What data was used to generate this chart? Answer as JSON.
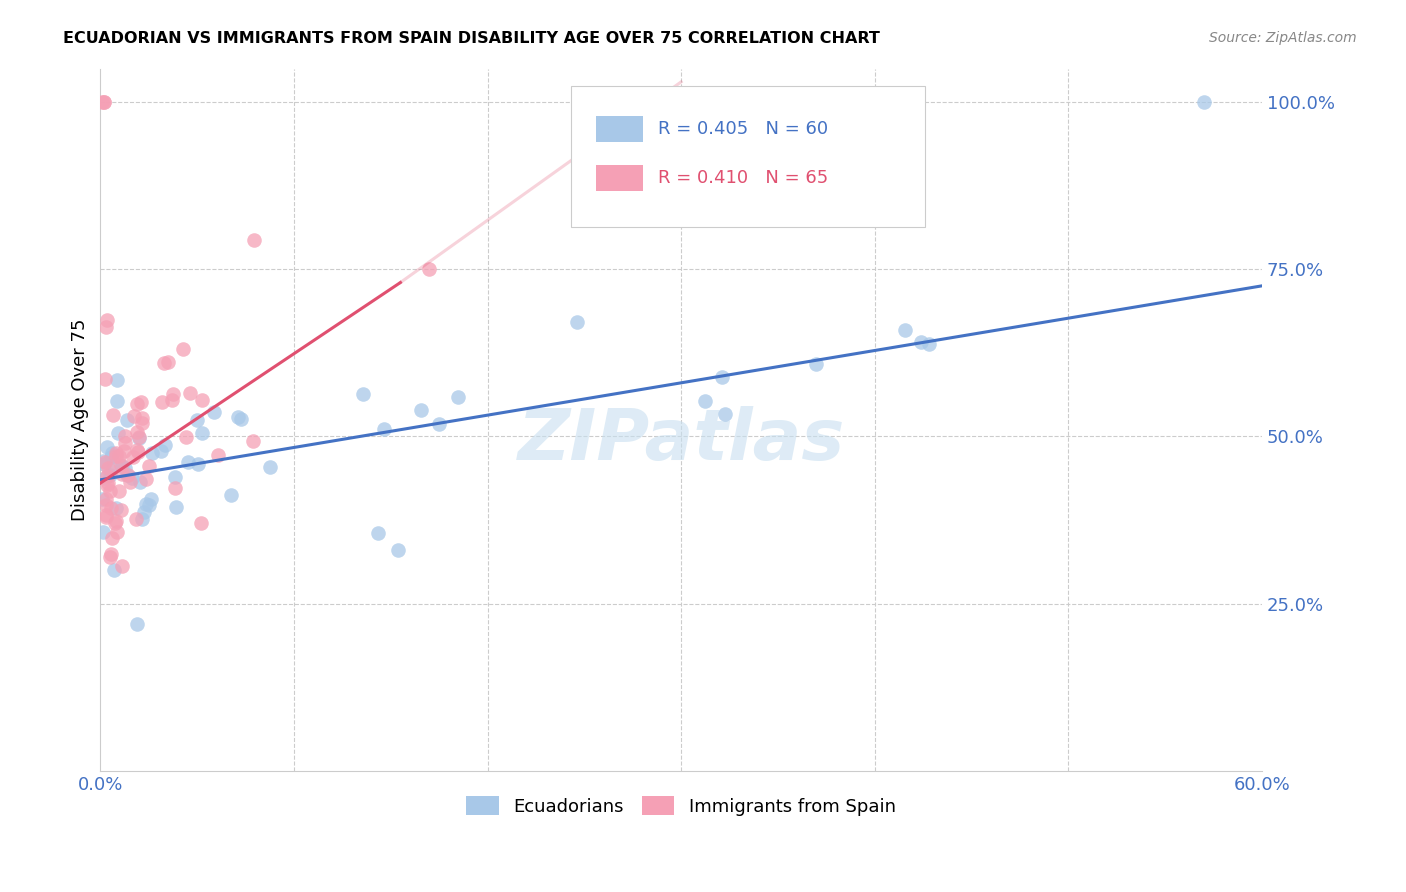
{
  "title": "ECUADORIAN VS IMMIGRANTS FROM SPAIN DISABILITY AGE OVER 75 CORRELATION CHART",
  "source": "Source: ZipAtlas.com",
  "ylabel": "Disability Age Over 75",
  "xlim": [
    0.0,
    0.6
  ],
  "ylim": [
    0.0,
    1.05
  ],
  "ytick_values": [
    0.25,
    0.5,
    0.75,
    1.0
  ],
  "ytick_labels": [
    "25.0%",
    "50.0%",
    "75.0%",
    "100.0%"
  ],
  "xtick_values": [
    0.0,
    0.1,
    0.2,
    0.3,
    0.4,
    0.5,
    0.6
  ],
  "xtick_labels": [
    "0.0%",
    "",
    "",
    "",
    "",
    "",
    "60.0%"
  ],
  "watermark": "ZIPatlas",
  "blue_color": "#a8c8e8",
  "pink_color": "#f5a0b5",
  "blue_line_color": "#4472c4",
  "pink_line_color": "#e05070",
  "axis_label_color": "#4472c4",
  "grid_color": "#cccccc",
  "blue_trend_x0": 0.0,
  "blue_trend_y0": 0.435,
  "blue_trend_x1": 0.6,
  "blue_trend_y1": 0.725,
  "pink_trend_x0": 0.0,
  "pink_trend_y0": 0.43,
  "pink_trend_x1": 0.155,
  "pink_trend_y1": 0.73,
  "pink_trend_ext_x1": 0.3,
  "pink_trend_ext_y1": 1.03
}
